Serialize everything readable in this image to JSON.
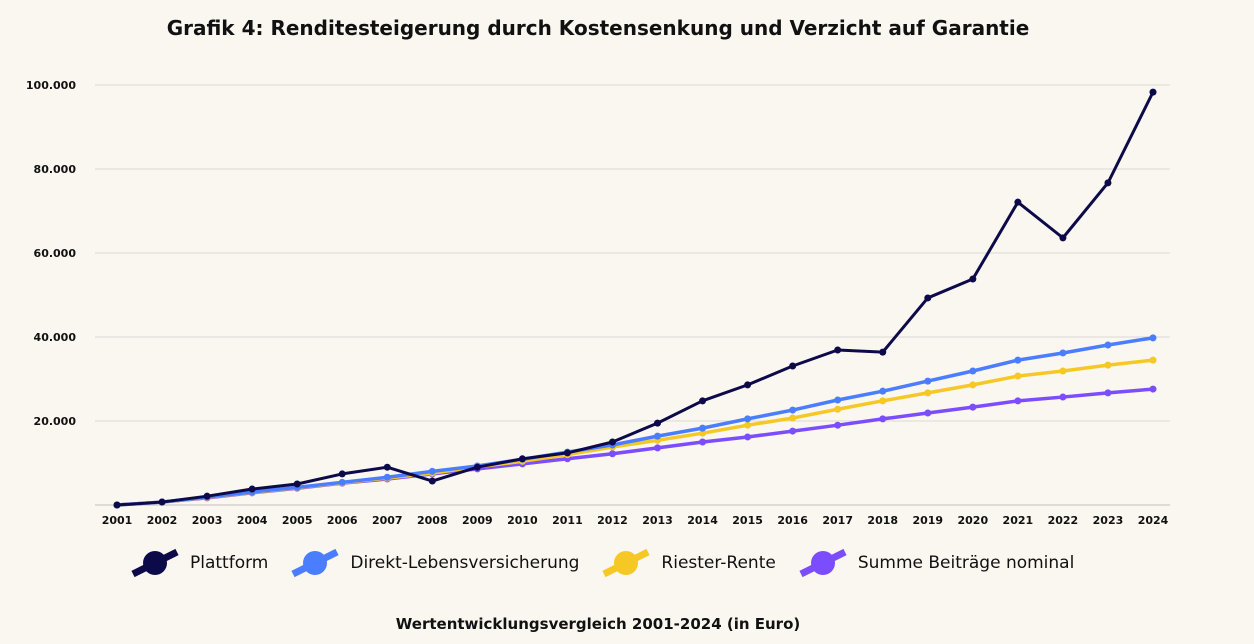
{
  "chart_data": {
    "type": "line",
    "title": "Grafik 4: Renditesteigerung durch Kostensenkung und Verzicht auf Garantie",
    "xlabel": "Wertentwicklungsvergleich 2001-2024 (in Euro)",
    "ylabel": "",
    "ylim": [
      0,
      100000
    ],
    "yticks": [
      20000,
      40000,
      60000,
      80000,
      100000
    ],
    "ytick_labels": [
      "20.000",
      "40.000",
      "60.000",
      "80.000",
      "100.000"
    ],
    "grid": true,
    "legend_position": "bottom",
    "x": [
      "2001",
      "2002",
      "2003",
      "2004",
      "2005",
      "2006",
      "2007",
      "2008",
      "2009",
      "2010",
      "2011",
      "2012",
      "2013",
      "2014",
      "2015",
      "2016",
      "2017",
      "2018",
      "2019",
      "2020",
      "2021",
      "2022",
      "2023",
      "2024"
    ],
    "series": [
      {
        "name": "Summe Beiträge nominal",
        "color": "#7b4dff",
        "values": [
          0,
          700,
          1700,
          2900,
          4000,
          5200,
          6200,
          7400,
          8600,
          9800,
          11000,
          12200,
          13600,
          15000,
          16200,
          17600,
          19000,
          20500,
          21900,
          23300,
          24800,
          25700,
          26700,
          27600
        ]
      },
      {
        "name": "Riester-Rente",
        "color": "#f5c825",
        "values": [
          0,
          700,
          1800,
          3000,
          4100,
          5300,
          6400,
          7600,
          9100,
          10400,
          12000,
          13800,
          15400,
          17100,
          19000,
          20700,
          22800,
          24800,
          26700,
          28600,
          30700,
          31900,
          33300,
          34500
        ]
      },
      {
        "name": "Direkt-Lebensversicherung",
        "color": "#4a7dff",
        "values": [
          0,
          700,
          1900,
          3100,
          4200,
          5400,
          6600,
          8000,
          9300,
          10900,
          12600,
          14300,
          16400,
          18300,
          20500,
          22600,
          25000,
          27100,
          29500,
          31900,
          34500,
          36200,
          38100,
          39800
        ]
      },
      {
        "name": "Plattform",
        "color": "#0d0a4a",
        "values": [
          0,
          700,
          2100,
          3800,
          5000,
          7400,
          9000,
          5700,
          9000,
          11000,
          12400,
          15000,
          19500,
          24800,
          28600,
          33100,
          36900,
          36400,
          49300,
          53800,
          72100,
          63600,
          76700,
          98300
        ]
      }
    ],
    "legend_order": [
      "Plattform",
      "Direkt-Lebensversicherung",
      "Riester-Rente",
      "Summe Beiträge nominal"
    ]
  }
}
